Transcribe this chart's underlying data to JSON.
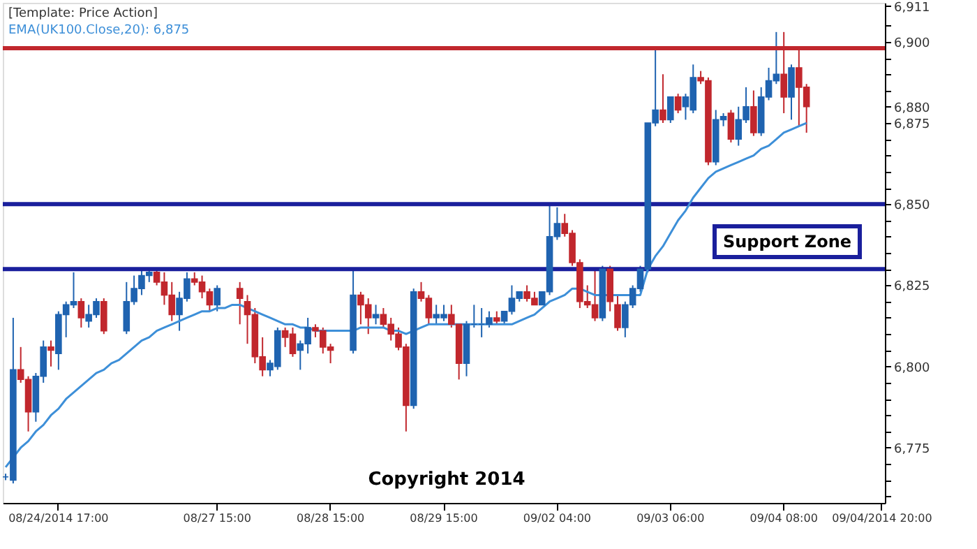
{
  "chart_data": {
    "type": "candlestick",
    "categories": [
      null,
      null,
      null,
      null,
      null,
      null,
      null,
      "08/24/2014 17:00",
      null,
      null,
      null,
      null,
      null,
      null,
      null,
      null,
      null,
      null,
      null,
      null,
      null,
      null,
      null,
      null,
      null,
      null,
      null,
      null,
      "08/27 15:00",
      null,
      null,
      null,
      null,
      null,
      null,
      null,
      null,
      null,
      null,
      null,
      null,
      null,
      null,
      "08/28 15:00",
      null,
      null,
      null,
      null,
      null,
      null,
      null,
      null,
      null,
      null,
      null,
      null,
      null,
      null,
      "08/29 15:00",
      null,
      null,
      null,
      null,
      null,
      null,
      null,
      null,
      null,
      null,
      null,
      null,
      null,
      null,
      "09/02 04:00",
      null,
      null,
      null,
      null,
      null,
      null,
      null,
      null,
      null,
      null,
      null,
      null,
      null,
      null,
      "09/03 06:00",
      null,
      null,
      null,
      null,
      null,
      null,
      null,
      null,
      null,
      null,
      null,
      null,
      null,
      null,
      "09/04 08:00",
      null,
      null,
      null,
      null,
      null,
      null,
      null,
      null,
      null,
      null,
      null,
      null,
      "09/04/2014 20:00"
    ],
    "ohlc": [
      [
        6766,
        6767,
        6765,
        6766
      ],
      [
        6765,
        6815,
        6764,
        6799
      ],
      [
        6799,
        6806,
        6795,
        6796
      ],
      [
        6796,
        6797,
        6780,
        6786
      ],
      [
        6786,
        6798,
        6783,
        6797
      ],
      [
        6797,
        6808,
        6795,
        6806
      ],
      [
        6806,
        6808,
        6800,
        6805
      ],
      [
        6804,
        6817,
        6799,
        6816
      ],
      [
        6816,
        6820,
        6809,
        6819
      ],
      [
        6819,
        6829,
        6818,
        6820
      ],
      [
        6820,
        6821,
        6812,
        6815
      ],
      [
        6814,
        6819,
        6812,
        6816
      ],
      [
        6816,
        6821,
        6815,
        6820
      ],
      [
        6820,
        6821,
        6810,
        6811
      ],
      null,
      null,
      [
        6811,
        6826,
        6810,
        6820
      ],
      [
        6820,
        6828,
        6819,
        6824
      ],
      [
        6824,
        6830,
        6822,
        6828
      ],
      [
        6828,
        6830,
        6826,
        6829
      ],
      [
        6829,
        6830,
        6825,
        6826
      ],
      [
        6826,
        6829,
        6819,
        6822
      ],
      [
        6822,
        6826,
        6814,
        6816
      ],
      [
        6816,
        6823,
        6811,
        6821
      ],
      [
        6821,
        6829,
        6820,
        6827
      ],
      [
        6827,
        6829,
        6825,
        6826
      ],
      [
        6826,
        6828,
        6821,
        6823
      ],
      [
        6823,
        6824,
        6817,
        6819
      ],
      [
        6819,
        6825,
        6817,
        6824
      ],
      null,
      null,
      [
        6824,
        6826,
        6813,
        6821
      ],
      [
        6820,
        6822,
        6807,
        6816
      ],
      [
        6816,
        6818,
        6801,
        6803
      ],
      [
        6803,
        6809,
        6797,
        6799
      ],
      [
        6799,
        6802,
        6797,
        6801
      ],
      [
        6800,
        6812,
        6799,
        6811
      ],
      [
        6811,
        6812,
        6806,
        6809
      ],
      [
        6810,
        6812,
        6803,
        6804
      ],
      [
        6805,
        6808,
        6799,
        6807
      ],
      [
        6807,
        6815,
        6804,
        6812
      ],
      [
        6812,
        6813,
        6809,
        6811
      ],
      [
        6811,
        6812,
        6804,
        6806
      ],
      [
        6806,
        6807,
        6801,
        6805
      ],
      null,
      null,
      [
        6805,
        6830,
        6804,
        6822
      ],
      [
        6822,
        6823,
        6813,
        6819
      ],
      [
        6819,
        6821,
        6810,
        6815
      ],
      [
        6815,
        6819,
        6813,
        6816
      ],
      [
        6816,
        6818,
        6812,
        6813
      ],
      [
        6813,
        6815,
        6808,
        6810
      ],
      [
        6810,
        6812,
        6805,
        6806
      ],
      [
        6806,
        6807,
        6780,
        6788
      ],
      [
        6788,
        6824,
        6787,
        6823
      ],
      [
        6823,
        6826,
        6820,
        6821
      ],
      [
        6821,
        6822,
        6813,
        6815
      ],
      [
        6815,
        6819,
        6813,
        6816
      ],
      [
        6815,
        6819,
        6814,
        6816
      ],
      [
        6816,
        6819,
        6812,
        6813
      ],
      [
        6813,
        6813,
        6796,
        6801
      ],
      [
        6801,
        6814,
        6797,
        6813
      ],
      [
        6813,
        6819,
        6812,
        6813
      ],
      [
        6813,
        6818,
        6809,
        6813
      ],
      [
        6813,
        6817,
        6812,
        6815
      ],
      [
        6815,
        6817,
        6813,
        6814
      ],
      [
        6814,
        6817,
        6813,
        6817
      ],
      [
        6817,
        6825,
        6816,
        6821
      ],
      [
        6821,
        6823,
        6820,
        6823
      ],
      [
        6823,
        6825,
        6820,
        6821
      ],
      [
        6821,
        6823,
        6819,
        6819
      ],
      [
        6819,
        6823,
        6819,
        6823
      ],
      [
        6823,
        6850,
        6822,
        6840
      ],
      [
        6840,
        6849,
        6839,
        6844
      ],
      [
        6844,
        6847,
        6840,
        6841
      ],
      [
        6841,
        6842,
        6831,
        6832
      ],
      [
        6832,
        6833,
        6818,
        6820
      ],
      [
        6820,
        6825,
        6818,
        6819
      ],
      [
        6819,
        6830,
        6814,
        6815
      ],
      [
        6815,
        6831,
        6814,
        6830
      ],
      [
        6830,
        6831,
        6817,
        6820
      ],
      [
        6819,
        6822,
        6811,
        6812
      ],
      [
        6812,
        6820,
        6809,
        6819
      ],
      [
        6819,
        6825,
        6818,
        6824
      ],
      [
        6824,
        6831,
        6823,
        6830
      ],
      [
        6830,
        6875,
        6829,
        6875
      ],
      [
        6875,
        6898,
        6874,
        6879
      ],
      [
        6879,
        6890,
        6875,
        6876
      ],
      [
        6876,
        6883,
        6875,
        6883
      ],
      [
        6883,
        6884,
        6878,
        6879
      ],
      [
        6880,
        6884,
        6876,
        6883
      ],
      [
        6879,
        6893,
        6878,
        6889
      ],
      [
        6889,
        6891,
        6887,
        6888
      ],
      [
        6888,
        6889,
        6862,
        6863
      ],
      [
        6863,
        6879,
        6862,
        6876
      ],
      [
        6876,
        6878,
        6874,
        6877
      ],
      [
        6878,
        6879,
        6869,
        6870
      ],
      [
        6870,
        6880,
        6868,
        6876
      ],
      [
        6876,
        6886,
        6875,
        6880
      ],
      [
        6880,
        6885,
        6871,
        6872
      ],
      [
        6872,
        6886,
        6871,
        6883
      ],
      [
        6883,
        6892,
        6882,
        6888
      ],
      [
        6888,
        6903,
        6887,
        6890
      ],
      [
        6890,
        6903,
        6878,
        6883
      ],
      [
        6883,
        6893,
        6876,
        6892
      ],
      [
        6892,
        6898,
        6874,
        6886
      ],
      [
        6886,
        6887,
        6872,
        6880
      ],
      null,
      null,
      null,
      null,
      null,
      null,
      null,
      null,
      null,
      null
    ],
    "colors": [
      "#1f63b0",
      "#1f63b0",
      "#c1272d",
      "#c1272d",
      "#1f63b0",
      "#1f63b0",
      "#c1272d",
      "#1f63b0",
      "#1f63b0",
      "#1f63b0",
      "#c1272d",
      "#1f63b0",
      "#1f63b0",
      "#c1272d",
      null,
      null,
      "#1f63b0",
      "#1f63b0",
      "#1f63b0",
      "#1f63b0",
      "#c1272d",
      "#c1272d",
      "#c1272d",
      "#1f63b0",
      "#1f63b0",
      "#c1272d",
      "#c1272d",
      "#c1272d",
      "#1f63b0",
      null,
      null,
      "#c1272d",
      "#c1272d",
      "#c1272d",
      "#c1272d",
      "#1f63b0",
      "#1f63b0",
      "#c1272d",
      "#c1272d",
      "#1f63b0",
      "#1f63b0",
      "#c1272d",
      "#c1272d",
      "#c1272d",
      null,
      null,
      "#1f63b0",
      "#c1272d",
      "#c1272d",
      "#1f63b0",
      "#c1272d",
      "#c1272d",
      "#c1272d",
      "#c1272d",
      "#1f63b0",
      "#c1272d",
      "#c1272d",
      "#1f63b0",
      "#1f63b0",
      "#c1272d",
      "#c1272d",
      "#1f63b0",
      "#1f63b0",
      "#1f63b0",
      "#1f63b0",
      "#c1272d",
      "#1f63b0",
      "#1f63b0",
      "#1f63b0",
      "#c1272d",
      "#c1272d",
      "#1f63b0",
      "#1f63b0",
      "#1f63b0",
      "#c1272d",
      "#c1272d",
      "#c1272d",
      "#c1272d",
      "#c1272d",
      "#1f63b0",
      "#c1272d",
      "#c1272d",
      "#1f63b0",
      "#1f63b0",
      "#1f63b0",
      "#1f63b0",
      "#1f63b0",
      "#c1272d",
      "#1f63b0",
      "#c1272d",
      "#1f63b0",
      "#1f63b0",
      "#c1272d",
      "#c1272d",
      "#1f63b0",
      "#1f63b0",
      "#c1272d",
      "#1f63b0",
      "#1f63b0",
      "#c1272d",
      "#1f63b0",
      "#1f63b0",
      "#1f63b0",
      "#c1272d",
      "#1f63b0",
      "#c1272d",
      "#c1272d",
      null,
      null,
      null,
      null,
      null,
      null,
      null,
      null,
      null,
      null
    ],
    "series": [
      {
        "name": "EMA(UK100.Close,20): 6,875",
        "type": "line",
        "color": "#3d8fd8",
        "values": [
          6769,
          6772,
          6775,
          6777,
          6780,
          6782,
          6785,
          6787,
          6790,
          6792,
          6794,
          6796,
          6798,
          6799,
          6801,
          6802,
          6804,
          6806,
          6808,
          6809,
          6811,
          6812,
          6813,
          6814,
          6815,
          6816,
          6817,
          6817,
          6818,
          6818,
          6819,
          6819,
          6818,
          6817,
          6816,
          6815,
          6814,
          6813,
          6813,
          6812,
          6812,
          6811,
          6811,
          6811,
          6811,
          6811,
          6811,
          6812,
          6812,
          6812,
          6812,
          6811,
          6811,
          6810,
          6811,
          6812,
          6813,
          6813,
          6813,
          6813,
          6813,
          6813,
          6813,
          6813,
          6813,
          6813,
          6813,
          6813,
          6814,
          6815,
          6816,
          6818,
          6820,
          6821,
          6822,
          6824,
          6824,
          6823,
          6822,
          6822,
          6822,
          6822,
          6822,
          6822,
          6822,
          6830,
          6834,
          6837,
          6841,
          6845,
          6848,
          6852,
          6855,
          6858,
          6860,
          6861,
          6862,
          6863,
          6864,
          6865,
          6867,
          6868,
          6870,
          6872,
          6873,
          6874,
          6875,
          null,
          null,
          null,
          null,
          null,
          null,
          null,
          null,
          null,
          null
        ]
      }
    ],
    "ylim": [
      6758,
      6912
    ],
    "yticks": [
      {
        "value": 6760,
        "label": null
      },
      {
        "value": 6765,
        "label": null
      },
      {
        "value": 6770,
        "label": null
      },
      {
        "value": 6775,
        "label": "6,775"
      },
      {
        "value": 6780,
        "label": null
      },
      {
        "value": 6785,
        "label": null
      },
      {
        "value": 6790,
        "label": null
      },
      {
        "value": 6795,
        "label": null
      },
      {
        "value": 6800,
        "label": "6,800"
      },
      {
        "value": 6805,
        "label": null
      },
      {
        "value": 6810,
        "label": null
      },
      {
        "value": 6815,
        "label": null
      },
      {
        "value": 6820,
        "label": null
      },
      {
        "value": 6825,
        "label": "6,825"
      },
      {
        "value": 6830,
        "label": null
      },
      {
        "value": 6835,
        "label": null
      },
      {
        "value": 6840,
        "label": null
      },
      {
        "value": 6845,
        "label": null
      },
      {
        "value": 6850,
        "label": "6,850"
      },
      {
        "value": 6855,
        "label": null
      },
      {
        "value": 6860,
        "label": null
      },
      {
        "value": 6865,
        "label": null
      },
      {
        "value": 6870,
        "label": null
      },
      {
        "value": 6875,
        "label": "6,875"
      },
      {
        "value": 6880,
        "label": "6,880"
      },
      {
        "value": 6885,
        "label": null
      },
      {
        "value": 6890,
        "label": null
      },
      {
        "value": 6895,
        "label": null
      },
      {
        "value": 6900,
        "label": "6,900"
      },
      {
        "value": 6905,
        "label": null
      },
      {
        "value": 6911,
        "label": "6,911"
      }
    ],
    "ref_lines": [
      {
        "axis": "y",
        "value": 6898,
        "color": "#c1272d"
      },
      {
        "axis": "y",
        "value": 6850,
        "color": "#1a1f9c"
      },
      {
        "axis": "y",
        "value": 6830,
        "color": "#1a1f9c"
      }
    ],
    "annotations": [
      "[Template: Price Action]",
      "Support Zone",
      "Copyright 2014"
    ],
    "legend": "top left"
  }
}
